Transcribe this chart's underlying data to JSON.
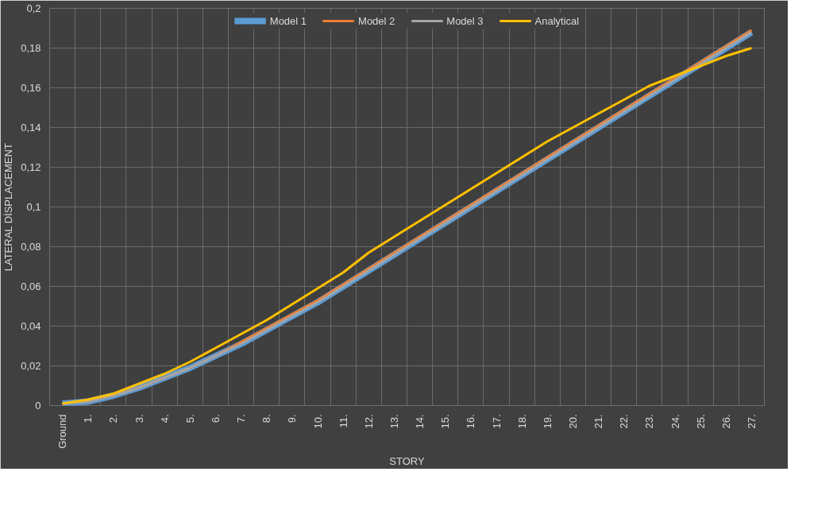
{
  "chart_data": {
    "type": "line",
    "xlabel": "STORY",
    "ylabel": "LATERAL DİSPLACEMENT",
    "categories": [
      "Ground",
      "1.",
      "2.",
      "3.",
      "4.",
      "5.",
      "6.",
      "7.",
      "8.",
      "9.",
      "10.",
      "11.",
      "12.",
      "13.",
      "14.",
      "15.",
      "16.",
      "17.",
      "18.",
      "19.",
      "20.",
      "21.",
      "22.",
      "23.",
      "24.",
      "25.",
      "26.",
      "27."
    ],
    "series": [
      {
        "name": "Model 1",
        "color": "#5b9bd5",
        "values": [
          0.001,
          0.002,
          0.005,
          0.009,
          0.014,
          0.019,
          0.025,
          0.031,
          0.038,
          0.045,
          0.052,
          0.06,
          0.068,
          0.076,
          0.084,
          0.092,
          0.1,
          0.108,
          0.116,
          0.124,
          0.132,
          0.14,
          0.148,
          0.156,
          0.164,
          0.172,
          0.18,
          0.188
        ]
      },
      {
        "name": "Model 2",
        "color": "#ed7d31",
        "values": [
          0.001,
          0.002,
          0.005,
          0.009,
          0.014,
          0.019,
          0.025,
          0.032,
          0.039,
          0.046,
          0.053,
          0.061,
          0.069,
          0.077,
          0.085,
          0.093,
          0.101,
          0.109,
          0.117,
          0.125,
          0.133,
          0.141,
          0.149,
          0.157,
          0.165,
          0.173,
          0.181,
          0.189
        ]
      },
      {
        "name": "Model 3",
        "color": "#a5a5a5",
        "values": [
          0.001,
          0.002,
          0.005,
          0.009,
          0.014,
          0.019,
          0.025,
          0.031,
          0.038,
          0.045,
          0.052,
          0.06,
          0.068,
          0.076,
          0.084,
          0.092,
          0.1,
          0.108,
          0.116,
          0.124,
          0.132,
          0.14,
          0.148,
          0.156,
          0.164,
          0.172,
          0.18,
          0.188
        ]
      },
      {
        "name": "Analytical",
        "color": "#ffc000",
        "values": [
          0.001,
          0.003,
          0.006,
          0.011,
          0.016,
          0.022,
          0.029,
          0.036,
          0.043,
          0.051,
          0.059,
          0.067,
          0.077,
          0.085,
          0.093,
          0.101,
          0.109,
          0.117,
          0.125,
          0.133,
          0.14,
          0.147,
          0.154,
          0.161,
          0.166,
          0.171,
          0.176,
          0.18
        ]
      }
    ],
    "ylim": [
      0,
      0.2
    ],
    "yticks": [
      0,
      {
        "value": 0.02,
        "label": "0,02"
      },
      {
        "value": 0.04,
        "label": "0,04"
      },
      {
        "value": 0.06,
        "label": "0,06"
      },
      {
        "value": 0.08,
        "label": "0,08"
      },
      {
        "value": 0.1,
        "label": "0,1"
      },
      {
        "value": 0.12,
        "label": "0,12"
      },
      {
        "value": 0.14,
        "label": "0,14"
      },
      {
        "value": 0.16,
        "label": "0,16"
      },
      {
        "value": 0.18,
        "label": "0,18"
      },
      {
        "value": 0.2,
        "label": "0,2"
      }
    ],
    "grid": true,
    "legend": "top",
    "marker": "none",
    "line_style": "solid"
  }
}
